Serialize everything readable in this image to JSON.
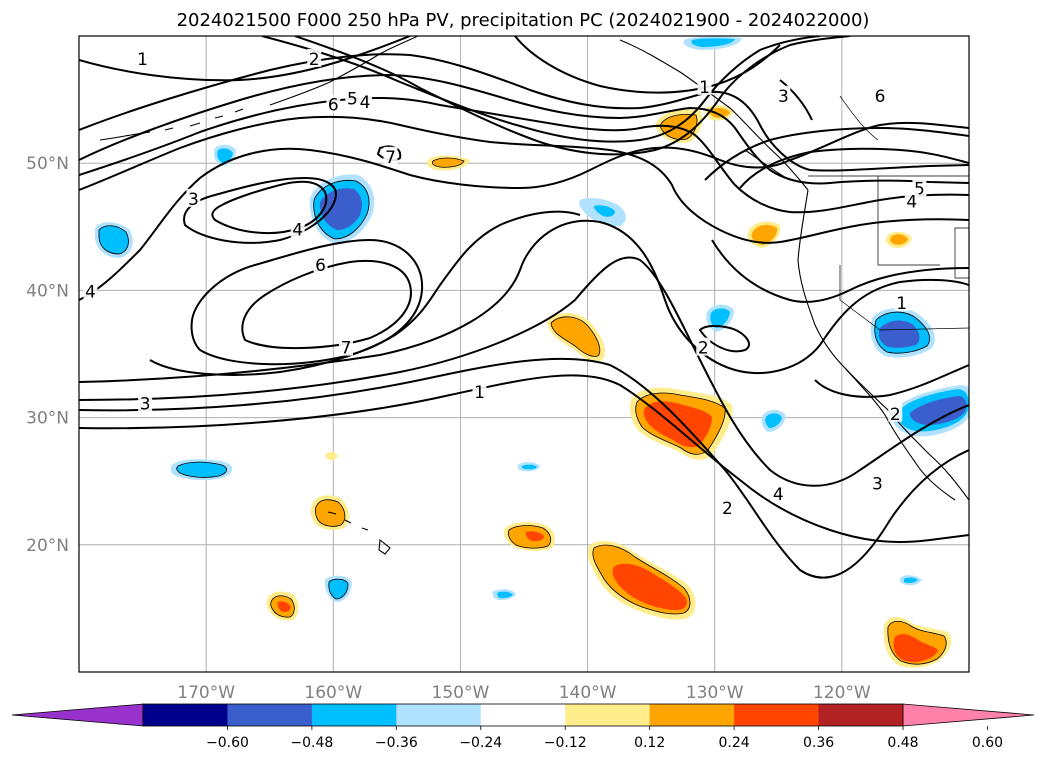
{
  "title": "2024021500 F000 250 hPa PV, precipitation PC (2024021900 - 2024022000)",
  "map": {
    "lon_range_deg": [
      -180,
      -110
    ],
    "lat_range_deg": [
      10,
      60
    ],
    "lat_gridlines": [
      {
        "value": 50,
        "label": "50°N"
      },
      {
        "value": 40,
        "label": "40°N"
      },
      {
        "value": 30,
        "label": "30°N"
      },
      {
        "value": 20,
        "label": "20°N"
      }
    ],
    "lon_gridlines": [
      {
        "value": -170,
        "label": "170°W"
      },
      {
        "value": -160,
        "label": "160°W"
      },
      {
        "value": -150,
        "label": "150°W"
      },
      {
        "value": -140,
        "label": "140°W"
      },
      {
        "value": -130,
        "label": "130°W"
      },
      {
        "value": -120,
        "label": "120°W"
      }
    ],
    "contour_labels": [
      {
        "text": "1",
        "lon": -175.0,
        "lat": 58.2
      },
      {
        "text": "2",
        "lon": -161.5,
        "lat": 58.2
      },
      {
        "text": "5",
        "lon": -158.5,
        "lat": 55.1
      },
      {
        "text": "4",
        "lon": -157.5,
        "lat": 54.8
      },
      {
        "text": "6",
        "lon": -160.0,
        "lat": 54.6
      },
      {
        "text": "7",
        "lon": -155.5,
        "lat": 50.5
      },
      {
        "text": "3",
        "lon": -171.0,
        "lat": 47.2
      },
      {
        "text": "4",
        "lon": -162.8,
        "lat": 44.8
      },
      {
        "text": "6",
        "lon": -161.0,
        "lat": 42.0
      },
      {
        "text": "7",
        "lon": -159.0,
        "lat": 35.5
      },
      {
        "text": "1",
        "lon": -148.5,
        "lat": 32.0
      },
      {
        "text": "3",
        "lon": -174.8,
        "lat": 31.1
      },
      {
        "text": "4",
        "lon": -179.1,
        "lat": 39.9
      },
      {
        "text": "1",
        "lon": -130.8,
        "lat": 56.0
      },
      {
        "text": "3",
        "lon": -124.6,
        "lat": 55.3
      },
      {
        "text": "6",
        "lon": -117.0,
        "lat": 55.3
      },
      {
        "text": "5",
        "lon": -113.9,
        "lat": 48.0
      },
      {
        "text": "4",
        "lon": -114.5,
        "lat": 47.0
      },
      {
        "text": "1",
        "lon": -115.3,
        "lat": 39.0
      },
      {
        "text": "2",
        "lon": -130.9,
        "lat": 35.5
      },
      {
        "text": "2",
        "lon": -115.8,
        "lat": 30.3
      },
      {
        "text": "4",
        "lon": -125.0,
        "lat": 24.0
      },
      {
        "text": "3",
        "lon": -117.2,
        "lat": 24.8
      },
      {
        "text": "2",
        "lon": -129.0,
        "lat": 22.9
      }
    ]
  },
  "colorbar": {
    "colors": [
      "#9932cc",
      "#00008b",
      "#3a5fcd",
      "#00bfff",
      "#b0e2ff",
      "#ffffff",
      "#ffec8b",
      "#ffa500",
      "#ff4500",
      "#b22222",
      "#ff82ab"
    ],
    "tick_labels": [
      "−0.60",
      "−0.48",
      "−0.36",
      "−0.24",
      "−0.12",
      "0.12",
      "0.24",
      "0.36",
      "0.48",
      "0.60"
    ]
  }
}
